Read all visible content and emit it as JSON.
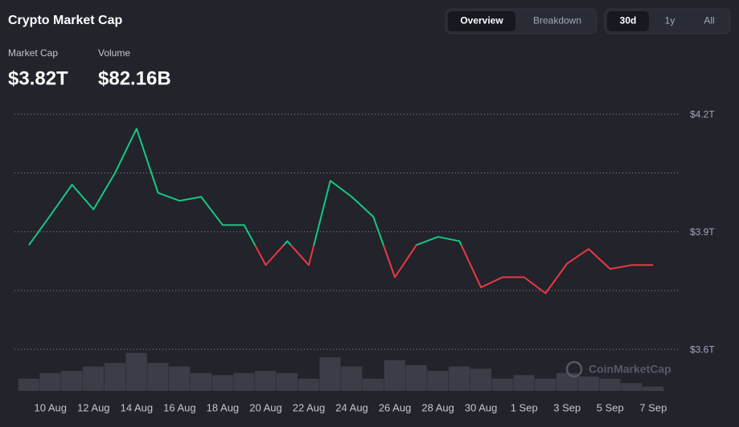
{
  "header": {
    "title": "Crypto Market Cap",
    "stats": [
      {
        "label": "Market Cap",
        "value": "$3.82T"
      },
      {
        "label": "Volume",
        "value": "$82.16B"
      }
    ],
    "view_tabs": [
      "Overview",
      "Breakdown"
    ],
    "active_view": 0,
    "range_tabs": [
      "30d",
      "1y",
      "All"
    ],
    "active_range": 0
  },
  "chart_data": {
    "type": "line",
    "watermark": "CoinMarketCap",
    "x": [
      "9 Aug",
      "10 Aug",
      "11 Aug",
      "12 Aug",
      "13 Aug",
      "14 Aug",
      "15 Aug",
      "16 Aug",
      "17 Aug",
      "18 Aug",
      "19 Aug",
      "20 Aug",
      "21 Aug",
      "22 Aug",
      "23 Aug",
      "24 Aug",
      "25 Aug",
      "26 Aug",
      "27 Aug",
      "28 Aug",
      "29 Aug",
      "30 Aug",
      "31 Aug",
      "1 Sep",
      "2 Sep",
      "3 Sep",
      "4 Sep",
      "5 Sep",
      "6 Sep",
      "7 Sep"
    ],
    "xticks": [
      "10 Aug",
      "12 Aug",
      "14 Aug",
      "16 Aug",
      "18 Aug",
      "20 Aug",
      "22 Aug",
      "24 Aug",
      "26 Aug",
      "28 Aug",
      "30 Aug",
      "1 Sep",
      "3 Sep",
      "5 Sep",
      "7 Sep"
    ],
    "series": [
      {
        "name": "Market Cap",
        "up_color": "#16c784",
        "down_color": "#ea3943",
        "values": [
          3.866,
          3.942,
          4.02,
          3.957,
          4.05,
          4.163,
          3.999,
          3.979,
          3.989,
          3.917,
          3.917,
          3.815,
          3.876,
          3.815,
          4.03,
          3.989,
          3.938,
          3.784,
          3.866,
          3.887,
          3.876,
          3.758,
          3.784,
          3.784,
          3.743,
          3.819,
          3.856,
          3.805,
          3.815,
          3.815
        ]
      },
      {
        "name": "Volume",
        "axis": "y2",
        "color": "#3b3d47",
        "values": [
          17,
          25,
          28,
          34,
          39,
          53,
          39,
          34,
          25,
          22,
          25,
          28,
          25,
          17,
          47,
          34,
          17,
          43,
          36,
          28,
          34,
          31,
          17,
          22,
          17,
          25,
          20,
          17,
          11,
          6
        ]
      }
    ],
    "ylim": [
      3.494,
      4.225
    ],
    "yticks": [
      {
        "value": 3.6,
        "label": "$3.6T"
      },
      {
        "value": 3.75,
        "label": null
      },
      {
        "value": 3.9,
        "label": "$3.9T"
      },
      {
        "value": 4.05,
        "label": null
      },
      {
        "value": 4.2,
        "label": "$4.2T"
      }
    ],
    "y2lim": [
      0,
      400
    ],
    "grid": true
  }
}
